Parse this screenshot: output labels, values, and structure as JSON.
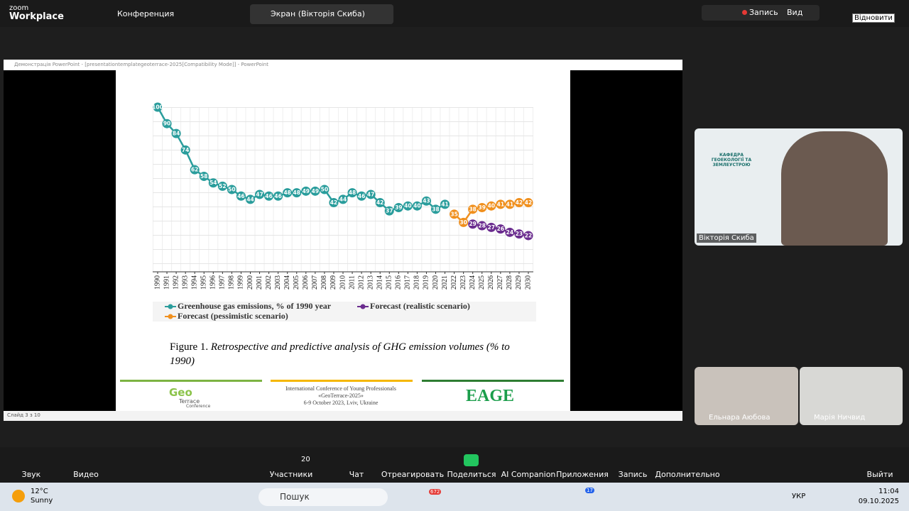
{
  "zoom": {
    "logo_top": "zoom",
    "logo_bottom": "Workplace",
    "meeting": "Конференция",
    "screen_tab": "Экран (Вікторія Скиба)",
    "record": "Запись",
    "view": "Вид",
    "tooltip": "Відновити"
  },
  "window": {
    "title": "Демонстрація PowerPoint - [presentationtemplategeoterrace-2025[Compatibility Mode]] - PowerPoint",
    "status": "Слайд 3 з 10"
  },
  "chart_data": {
    "type": "line",
    "categories": [
      "1990",
      "1991",
      "1992",
      "1993",
      "1994",
      "1995",
      "1996",
      "1997",
      "1998",
      "1999",
      "2000",
      "2001",
      "2002",
      "2003",
      "2004",
      "2005",
      "2006",
      "2007",
      "2008",
      "2009",
      "2010",
      "2011",
      "2012",
      "2013",
      "2014",
      "2015",
      "2016",
      "2017",
      "2018",
      "2019",
      "2020",
      "2021",
      "2022",
      "2023",
      "2024",
      "2025",
      "2026",
      "2027",
      "2028",
      "2029",
      "2030"
    ],
    "series": [
      {
        "name": "Greenhouse gas emissions, % of 1990 year",
        "color": "#2a9d9c",
        "values": [
          100,
          90,
          84,
          74,
          62,
          58,
          54,
          52,
          50,
          46,
          44,
          47,
          46,
          46,
          48,
          48,
          49,
          49,
          50,
          42,
          44,
          48,
          46,
          47,
          42,
          37,
          39,
          40,
          40,
          43,
          38,
          41,
          null,
          null,
          null,
          null,
          null,
          null,
          null,
          null,
          null
        ]
      },
      {
        "name": "Forecast (realistic scenario)",
        "color": "#6b2d8f",
        "values": [
          null,
          null,
          null,
          null,
          null,
          null,
          null,
          null,
          null,
          null,
          null,
          null,
          null,
          null,
          null,
          null,
          null,
          null,
          null,
          null,
          null,
          null,
          null,
          null,
          null,
          null,
          null,
          null,
          null,
          null,
          null,
          null,
          null,
          null,
          29,
          28,
          27,
          26,
          24,
          23,
          22
        ]
      },
      {
        "name": "Forecast (pessimistic scenario)",
        "color": "#f0901e",
        "values": [
          null,
          null,
          null,
          null,
          null,
          null,
          null,
          null,
          null,
          null,
          null,
          null,
          null,
          null,
          null,
          null,
          null,
          null,
          null,
          null,
          null,
          null,
          null,
          null,
          null,
          null,
          null,
          null,
          null,
          null,
          null,
          null,
          35,
          30,
          38,
          39,
          40,
          41,
          41,
          42,
          42
        ]
      }
    ],
    "ylim": [
      0,
      100
    ],
    "grid": true
  },
  "slide": {
    "caption_lead": "Figure 1.",
    "caption_rest": "Retrospective and predictive analysis of GHG emission volumes (% to 1990)",
    "logo_geo": "Geo",
    "logo_terrace": "Terrace",
    "logo_conf": "Conference",
    "conf_lines": [
      "International Conference of Young Professionals",
      "«GeoTerrace-2025»",
      "6-9 October 2023, Lviv, Ukraine"
    ],
    "eage": "EAGE"
  },
  "participants": {
    "main": "Вікторія Скиба",
    "logo_text": "КАФЕДРА ГЕОЕКОЛОГІЇ ТА ЗЕМЛЕУСТРОЮ",
    "p2": "Ельнара Аюбова",
    "p3": "Марія Ничвид"
  },
  "toolbar": {
    "audio": "Звук",
    "video": "Видео",
    "count": "20",
    "participants": "Участники",
    "chat": "Чат",
    "react": "Отреагировать",
    "share": "Поделиться",
    "ai": "AI Companion",
    "apps": "Приложения",
    "record": "Запись",
    "more": "Дополнительно",
    "leave": "Выйти"
  },
  "taskbar": {
    "temp": "12°C",
    "weather": "Sunny",
    "search": "Пошук",
    "badge1": "672",
    "badge2": "17",
    "lang": "УКР",
    "time": "11:04",
    "date": "09.10.2025"
  }
}
